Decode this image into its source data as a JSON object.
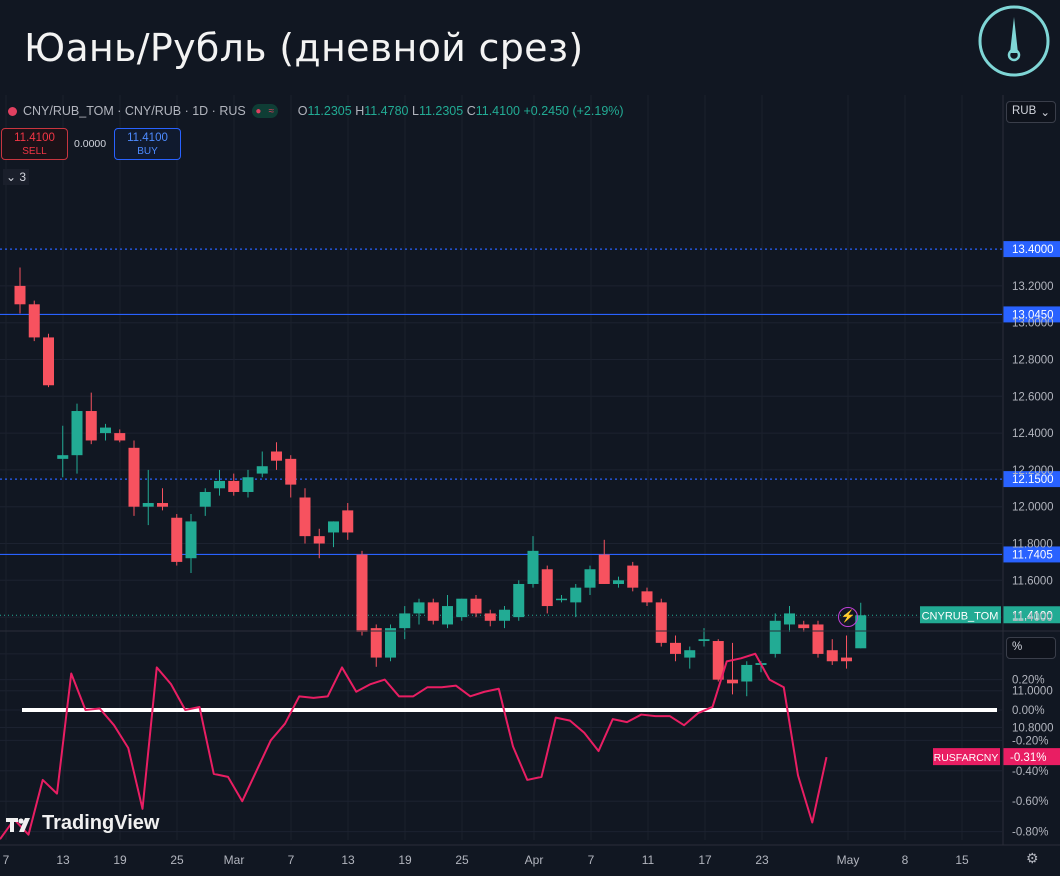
{
  "title": "Юань/Рубль (дневной срез)",
  "legend": {
    "symbol": "CNY/RUB_TOM · CNY/RUB · 1D · RUS",
    "o_label": "O",
    "o": "11.2305",
    "h_label": "H",
    "h": "11.4780",
    "l_label": "L",
    "l": "11.2305",
    "c_label": "C",
    "c": "11.4100",
    "change": "+0.2450 (+2.19%)"
  },
  "trade": {
    "sell_price": "11.4100",
    "sell_label": "SELL",
    "spread": "0.0000",
    "buy_price": "11.4100",
    "buy_label": "BUY",
    "collapse": "3"
  },
  "currency": "RUB",
  "percent_unit": "%",
  "branding": "TradingView",
  "colors": {
    "up": "#22ab94",
    "down": "#f7525f",
    "level": "#2962ff",
    "indicator": "#e91e63",
    "zero_line": "#ffffff"
  },
  "chart_data": [
    {
      "type": "candlestick",
      "symbol": "CNY/RUB_TOM",
      "price_axis": {
        "min": 10.7,
        "max": 13.5,
        "ticks": [
          "10.8000",
          "11.0000",
          "11.2000",
          "11.4000",
          "11.6000",
          "11.8000",
          "12.0000",
          "12.2000",
          "12.4000",
          "12.6000",
          "12.8000",
          "13.0000",
          "13.2000"
        ]
      },
      "x_ticks": [
        "7",
        "13",
        "19",
        "25",
        "Mar",
        "7",
        "13",
        "19",
        "25",
        "Apr",
        "7",
        "11",
        "17",
        "23",
        "May",
        "8",
        "15"
      ],
      "levels": [
        {
          "value": 13.4,
          "label": "13.4000",
          "style": "dotted"
        },
        {
          "value": 13.045,
          "label": "13.0450",
          "style": "solid"
        },
        {
          "value": 12.15,
          "label": "12.1500",
          "style": "dotted"
        },
        {
          "value": 11.7405,
          "label": "11.7405",
          "style": "solid"
        }
      ],
      "last_price": {
        "value": 11.41,
        "label": "11.4100",
        "tag": "CNYRUB_TOM"
      },
      "candles": [
        {
          "o": 13.2,
          "h": 13.3,
          "l": 13.05,
          "c": 13.1
        },
        {
          "o": 13.1,
          "h": 13.12,
          "l": 12.9,
          "c": 12.92
        },
        {
          "o": 12.92,
          "h": 12.94,
          "l": 12.65,
          "c": 12.66
        },
        {
          "o": 12.26,
          "h": 12.44,
          "l": 12.16,
          "c": 12.28
        },
        {
          "o": 12.28,
          "h": 12.56,
          "l": 12.18,
          "c": 12.52
        },
        {
          "o": 12.52,
          "h": 12.62,
          "l": 12.34,
          "c": 12.36
        },
        {
          "o": 12.4,
          "h": 12.45,
          "l": 12.36,
          "c": 12.43
        },
        {
          "o": 12.4,
          "h": 12.42,
          "l": 12.35,
          "c": 12.36
        },
        {
          "o": 12.32,
          "h": 12.36,
          "l": 11.95,
          "c": 12.0
        },
        {
          "o": 12.0,
          "h": 12.2,
          "l": 11.9,
          "c": 12.02
        },
        {
          "o": 12.02,
          "h": 12.1,
          "l": 11.98,
          "c": 12.0
        },
        {
          "o": 11.94,
          "h": 11.96,
          "l": 11.68,
          "c": 11.7
        },
        {
          "o": 11.72,
          "h": 11.96,
          "l": 11.64,
          "c": 11.92
        },
        {
          "o": 12.0,
          "h": 12.1,
          "l": 11.95,
          "c": 12.08
        },
        {
          "o": 12.1,
          "h": 12.2,
          "l": 12.06,
          "c": 12.14
        },
        {
          "o": 12.14,
          "h": 12.18,
          "l": 12.06,
          "c": 12.08
        },
        {
          "o": 12.08,
          "h": 12.2,
          "l": 12.05,
          "c": 12.16
        },
        {
          "o": 12.18,
          "h": 12.3,
          "l": 12.16,
          "c": 12.22
        },
        {
          "o": 12.3,
          "h": 12.35,
          "l": 12.2,
          "c": 12.25
        },
        {
          "o": 12.26,
          "h": 12.28,
          "l": 12.05,
          "c": 12.12
        },
        {
          "o": 12.05,
          "h": 12.1,
          "l": 11.8,
          "c": 11.84
        },
        {
          "o": 11.84,
          "h": 11.88,
          "l": 11.72,
          "c": 11.8
        },
        {
          "o": 11.86,
          "h": 11.92,
          "l": 11.78,
          "c": 11.92
        },
        {
          "o": 11.98,
          "h": 12.02,
          "l": 11.82,
          "c": 11.86
        },
        {
          "o": 11.74,
          "h": 11.76,
          "l": 11.3,
          "c": 11.32
        },
        {
          "o": 11.34,
          "h": 11.36,
          "l": 11.13,
          "c": 11.18
        },
        {
          "o": 11.18,
          "h": 11.36,
          "l": 11.16,
          "c": 11.34
        },
        {
          "o": 11.34,
          "h": 11.46,
          "l": 11.28,
          "c": 11.42
        },
        {
          "o": 11.42,
          "h": 11.5,
          "l": 11.36,
          "c": 11.48
        },
        {
          "o": 11.48,
          "h": 11.5,
          "l": 11.36,
          "c": 11.38
        },
        {
          "o": 11.36,
          "h": 11.52,
          "l": 11.34,
          "c": 11.46
        },
        {
          "o": 11.4,
          "h": 11.5,
          "l": 11.38,
          "c": 11.5
        },
        {
          "o": 11.5,
          "h": 11.52,
          "l": 11.4,
          "c": 11.42
        },
        {
          "o": 11.42,
          "h": 11.44,
          "l": 11.35,
          "c": 11.38
        },
        {
          "o": 11.38,
          "h": 11.46,
          "l": 11.34,
          "c": 11.44
        },
        {
          "o": 11.4,
          "h": 11.6,
          "l": 11.38,
          "c": 11.58
        },
        {
          "o": 11.58,
          "h": 11.84,
          "l": 11.56,
          "c": 11.76
        },
        {
          "o": 11.66,
          "h": 11.68,
          "l": 11.42,
          "c": 11.46
        },
        {
          "o": 11.5,
          "h": 11.52,
          "l": 11.48,
          "c": 11.5
        },
        {
          "o": 11.48,
          "h": 11.58,
          "l": 11.4,
          "c": 11.56
        },
        {
          "o": 11.56,
          "h": 11.68,
          "l": 11.52,
          "c": 11.66
        },
        {
          "o": 11.74,
          "h": 11.82,
          "l": 11.58,
          "c": 11.58
        },
        {
          "o": 11.58,
          "h": 11.62,
          "l": 11.56,
          "c": 11.6
        },
        {
          "o": 11.68,
          "h": 11.7,
          "l": 11.54,
          "c": 11.56
        },
        {
          "o": 11.54,
          "h": 11.56,
          "l": 11.46,
          "c": 11.48
        },
        {
          "o": 11.48,
          "h": 11.5,
          "l": 11.24,
          "c": 11.26
        },
        {
          "o": 11.26,
          "h": 11.3,
          "l": 11.16,
          "c": 11.2
        },
        {
          "o": 11.18,
          "h": 11.24,
          "l": 11.12,
          "c": 11.22
        },
        {
          "o": 11.27,
          "h": 11.34,
          "l": 11.24,
          "c": 11.28
        },
        {
          "o": 11.27,
          "h": 11.28,
          "l": 11.05,
          "c": 11.06
        },
        {
          "o": 11.06,
          "h": 11.26,
          "l": 10.98,
          "c": 11.04
        },
        {
          "o": 11.05,
          "h": 11.16,
          "l": 10.97,
          "c": 11.14
        },
        {
          "o": 11.14,
          "h": 11.16,
          "l": 11.1,
          "c": 11.15
        },
        {
          "o": 11.2,
          "h": 11.42,
          "l": 11.18,
          "c": 11.38
        },
        {
          "o": 11.36,
          "h": 11.46,
          "l": 11.32,
          "c": 11.42
        },
        {
          "o": 11.36,
          "h": 11.38,
          "l": 11.32,
          "c": 11.34
        },
        {
          "o": 11.36,
          "h": 11.38,
          "l": 11.18,
          "c": 11.2
        },
        {
          "o": 11.22,
          "h": 11.28,
          "l": 11.14,
          "c": 11.16
        },
        {
          "o": 11.18,
          "h": 11.3,
          "l": 11.12,
          "c": 11.16
        },
        {
          "o": 11.2305,
          "h": 11.478,
          "l": 11.2305,
          "c": 11.41
        }
      ]
    },
    {
      "type": "line",
      "series": [
        {
          "name": "RUSFARCNY"
        }
      ],
      "last_value": "-0.31%",
      "y_ticks": [
        "0.20%",
        "0.00%",
        "-0.20%",
        "-0.40%",
        "-0.60%",
        "-0.80%"
      ],
      "ylim": [
        -0.86,
        0.38
      ],
      "values": [
        -0.85,
        -0.72,
        -0.82,
        -0.46,
        -0.55,
        0.24,
        0.0,
        0.01,
        -0.1,
        -0.25,
        -0.65,
        0.28,
        0.17,
        0.0,
        0.02,
        -0.42,
        -0.44,
        -0.6,
        -0.4,
        -0.2,
        -0.09,
        0.09,
        0.08,
        0.09,
        0.28,
        0.12,
        0.17,
        0.2,
        0.09,
        0.09,
        0.15,
        0.15,
        0.16,
        0.09,
        0.12,
        0.14,
        -0.24,
        -0.46,
        -0.44,
        -0.05,
        -0.07,
        -0.15,
        -0.27,
        -0.06,
        -0.08,
        -0.03,
        -0.04,
        -0.04,
        -0.1,
        -0.02,
        0.02,
        0.32,
        0.34,
        0.37,
        0.2,
        0.15,
        -0.43,
        -0.74,
        -0.31
      ]
    }
  ]
}
